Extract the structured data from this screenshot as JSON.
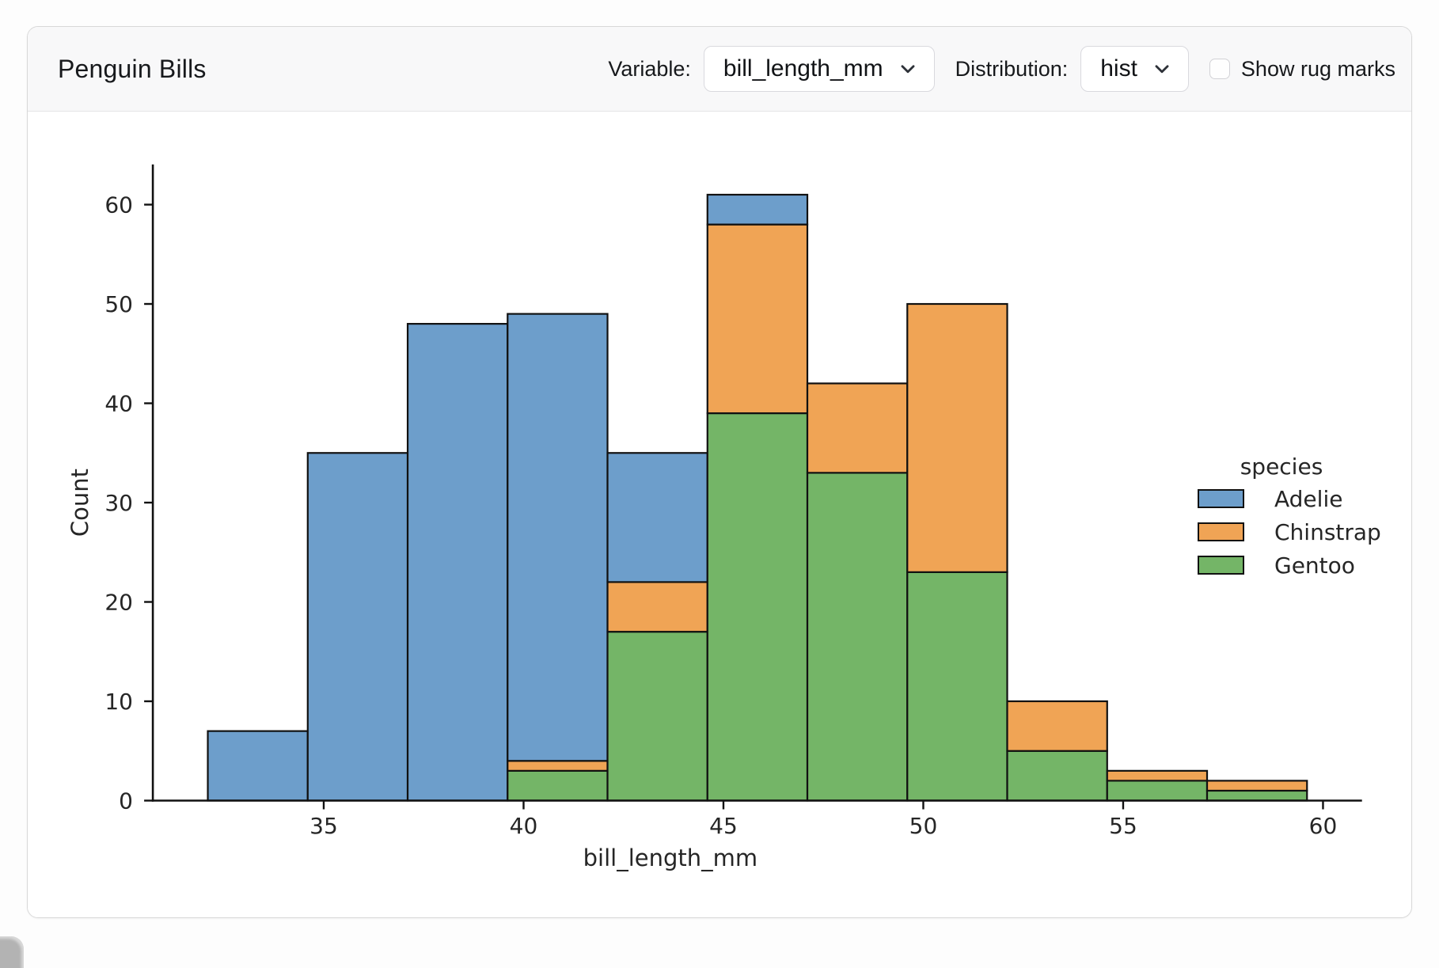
{
  "header": {
    "title": "Penguin Bills",
    "variable_label": "Variable:",
    "variable_value": "bill_length_mm",
    "distribution_label": "Distribution:",
    "distribution_value": "hist",
    "rug_label": "Show rug marks",
    "rug_checked": false
  },
  "chart_data": {
    "type": "bar",
    "subtype": "stacked-histogram",
    "title": "",
    "xlabel": "bill_length_mm",
    "ylabel": "Count",
    "bin_edges": [
      32.1,
      34.6,
      37.1,
      39.6,
      42.1,
      44.6,
      47.1,
      49.6,
      52.1,
      54.6,
      57.1,
      59.6
    ],
    "x_ticks": [
      35,
      40,
      45,
      50,
      55,
      60
    ],
    "y_ticks": [
      0,
      10,
      20,
      30,
      40,
      50,
      60
    ],
    "xlim": [
      30.725,
      60.975
    ],
    "ylim": [
      0,
      64.05
    ],
    "grid": false,
    "bar_edge_color": "#111111",
    "axis_color": "#111111",
    "text_color": "#262626",
    "stack_order_bottom_to_top": [
      "Gentoo",
      "Chinstrap",
      "Adelie"
    ],
    "series": [
      {
        "name": "Adelie",
        "color": "#6d9ecb",
        "values": [
          7,
          35,
          48,
          45,
          13,
          3,
          0,
          0,
          0,
          0,
          0
        ]
      },
      {
        "name": "Chinstrap",
        "color": "#f0a455",
        "values": [
          0,
          0,
          0,
          1,
          5,
          19,
          9,
          27,
          5,
          1,
          1
        ]
      },
      {
        "name": "Gentoo",
        "color": "#74b567",
        "values": [
          0,
          0,
          0,
          3,
          17,
          39,
          33,
          23,
          5,
          2,
          1
        ]
      }
    ],
    "bin_totals": [
      7,
      35,
      48,
      49,
      35,
      61,
      42,
      50,
      10,
      3,
      2
    ],
    "legend": {
      "title": "species",
      "position": "right"
    }
  }
}
